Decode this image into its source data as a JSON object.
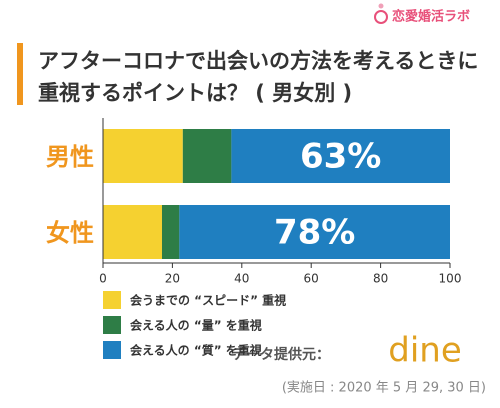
{
  "chart_data": {
    "type": "stacked_barh",
    "brand": "恋愛婚活ラボ",
    "title": [
      "アフターコロナで出会いの方法を考えるときに",
      "重視するポイントは？ ( 男女別 )"
    ],
    "categories": [
      "男性",
      "女性"
    ],
    "series": [
      {
        "name": "会うまでの “スピード” 重視",
        "color": "#f5d130",
        "values": [
          23,
          17
        ]
      },
      {
        "name": "会える人の “量” を重視",
        "color": "#2e7d46",
        "values": [
          14,
          5
        ]
      },
      {
        "name": "会える人の “質” を重視",
        "color": "#1f7fc0",
        "values": [
          63,
          78
        ],
        "value_labels": [
          "63%",
          "78%"
        ]
      }
    ],
    "xlim": [
      0,
      100
    ],
    "xticks": [
      0,
      20,
      40,
      60,
      80,
      100
    ],
    "grid": false,
    "legend": "bottom-left",
    "source_label": "データ提供元：",
    "source_brand": "dine",
    "note": "(実施日 : 2020 年 5 月 29, 30 日)"
  }
}
